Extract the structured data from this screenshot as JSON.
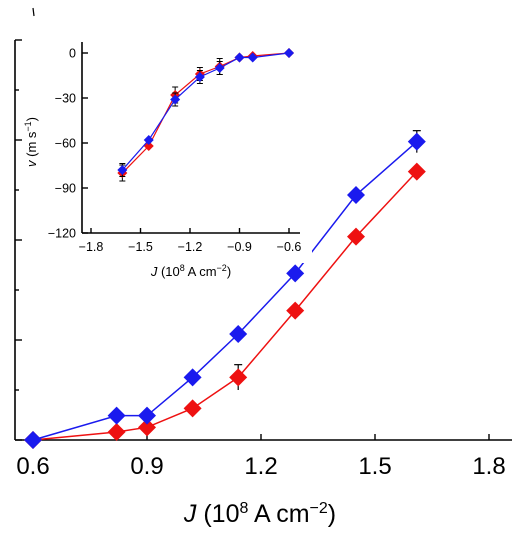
{
  "chart_data": [
    {
      "type": "line",
      "role": "main",
      "xlabel": "J (10^8 A cm^-2)",
      "xlim": [
        0.5,
        1.9
      ],
      "x_ticks": [
        0.6,
        0.9,
        1.2,
        1.5,
        1.8
      ],
      "x_tick_labels": [
        "0.6",
        "0.9",
        "1.2",
        "1.5",
        "1.8"
      ],
      "ylim": [
        -120,
        0
      ],
      "y_ticks": [
        -120,
        -90,
        -60,
        -30,
        0
      ],
      "grid": false,
      "series": [
        {
          "color": "#1a1aee",
          "marker": "diamond",
          "points": [
            {
              "x": 0.6,
              "y": -120
            },
            {
              "x": 0.82,
              "y": -112.7
            },
            {
              "x": 0.9,
              "y": -112.7
            },
            {
              "x": 1.02,
              "y": -101.2
            },
            {
              "x": 1.14,
              "y": -88.2
            },
            {
              "x": 1.29,
              "y": -70
            },
            {
              "x": 1.45,
              "y": -46.5
            },
            {
              "x": 1.61,
              "y": -30.5,
              "err": 1.5
            }
          ]
        },
        {
          "color": "#ee1111",
          "marker": "diamond",
          "points": [
            {
              "x": 0.6,
              "y": -120
            },
            {
              "x": 0.82,
              "y": -117.6
            },
            {
              "x": 0.9,
              "y": -116.2
            },
            {
              "x": 1.02,
              "y": -110.5
            },
            {
              "x": 1.14,
              "y": -101.2,
              "err": 2
            },
            {
              "x": 1.29,
              "y": -81.2
            },
            {
              "x": 1.45,
              "y": -59
            },
            {
              "x": 1.61,
              "y": -39.5
            }
          ]
        }
      ]
    },
    {
      "type": "line",
      "role": "inset",
      "xlabel": "J (10^8 A cm^-2)",
      "ylabel": "v (m s^-1)",
      "xlim": [
        -1.85,
        -0.6
      ],
      "x_ticks": [
        -1.8,
        -1.5,
        -1.2,
        -0.9,
        -0.6
      ],
      "x_tick_labels": [
        "−1.8",
        "−1.5",
        "−1.2",
        "−0.9",
        "−0.6"
      ],
      "ylim": [
        -120,
        0
      ],
      "y_ticks": [
        -120,
        -90,
        -60,
        -30,
        0
      ],
      "y_tick_labels": [
        "−120",
        "−90",
        "−60",
        "−30",
        "0"
      ],
      "grid": false,
      "series": [
        {
          "color": "#ee1111",
          "marker": "diamond",
          "points": [
            {
              "x": -1.61,
              "y": -80,
              "err": 4
            },
            {
              "x": -1.45,
              "y": -62
            },
            {
              "x": -1.29,
              "y": -28,
              "err": 4
            },
            {
              "x": -1.14,
              "y": -14,
              "err": 3
            },
            {
              "x": -1.02,
              "y": -9,
              "err": 4
            },
            {
              "x": -0.9,
              "y": -3
            },
            {
              "x": -0.82,
              "y": -2
            },
            {
              "x": -0.6,
              "y": 0
            }
          ]
        },
        {
          "color": "#1a1aee",
          "marker": "diamond",
          "points": [
            {
              "x": -1.61,
              "y": -78,
              "err": 3
            },
            {
              "x": -1.45,
              "y": -58
            },
            {
              "x": -1.29,
              "y": -31,
              "err": 3
            },
            {
              "x": -1.14,
              "y": -16,
              "err": 3
            },
            {
              "x": -1.02,
              "y": -10,
              "err": 3
            },
            {
              "x": -0.9,
              "y": -3
            },
            {
              "x": -0.82,
              "y": -3
            },
            {
              "x": -0.6,
              "y": 0
            }
          ]
        }
      ]
    }
  ]
}
